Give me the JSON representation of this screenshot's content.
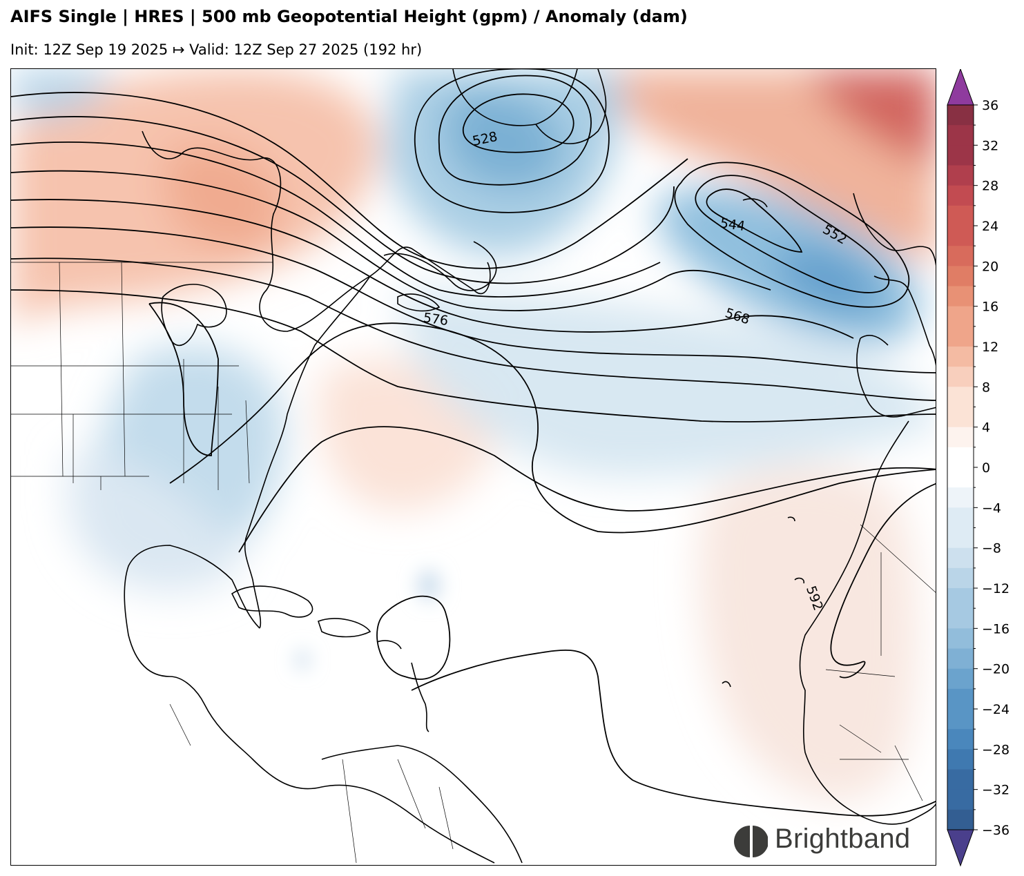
{
  "header": {
    "title": "AIFS Single | HRES | 500 mb Geopotential Height (gpm) / Anomaly (dam)",
    "subtitle": "Init: 12Z Sep 19 2025 ↦ Valid: 12Z Sep 27 2025 (192 hr)"
  },
  "map": {
    "contour_labels": [
      {
        "id": "528",
        "text": "528"
      },
      {
        "id": "544",
        "text": "544"
      },
      {
        "id": "552",
        "text": "552"
      },
      {
        "id": "568",
        "text": "568"
      },
      {
        "id": "576",
        "text": "576"
      },
      {
        "id": "592",
        "text": "592"
      }
    ]
  },
  "colorbar": {
    "ticks": [
      "36",
      "32",
      "28",
      "24",
      "20",
      "16",
      "12",
      "8",
      "4",
      "0",
      "−4",
      "−8",
      "−12",
      "−16",
      "−20",
      "−24",
      "−28",
      "−32",
      "−36"
    ],
    "min": -36,
    "max": 36,
    "step": 4,
    "extend": "both",
    "over_color": "#8f3b9e",
    "under_color": "#4a3f8c"
  },
  "logo": {
    "text": "Brightband",
    "icon": "brightband-logo-icon"
  }
}
